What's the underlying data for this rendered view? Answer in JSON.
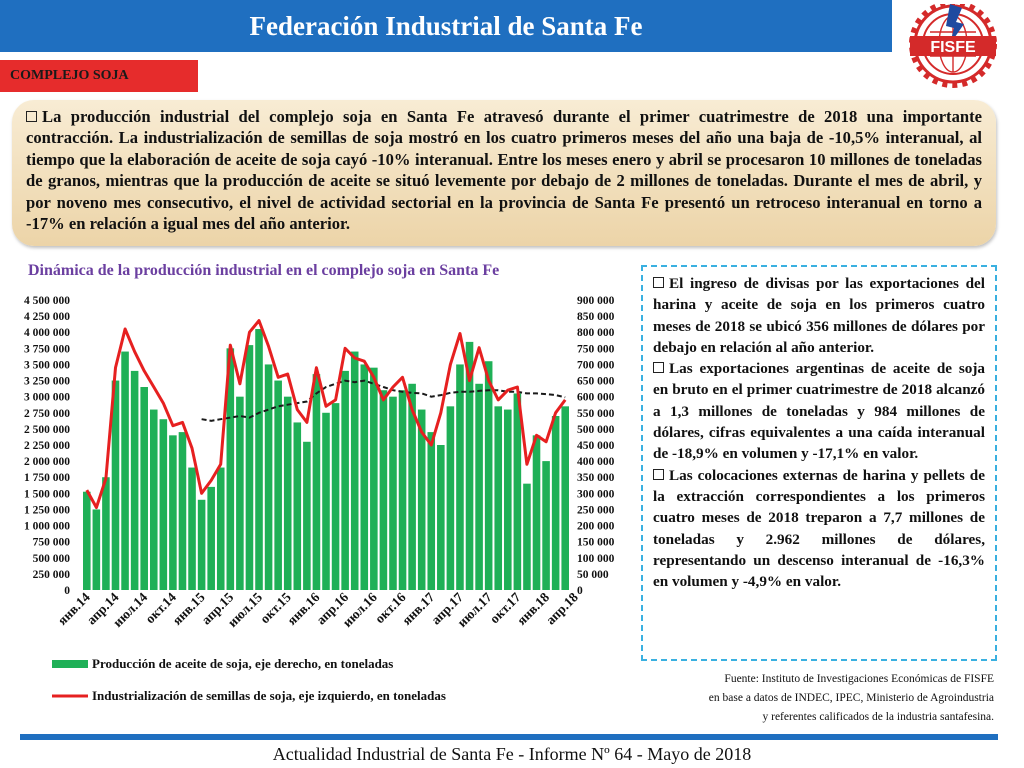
{
  "header": {
    "title": "Federación Industrial de Santa Fe",
    "logo_text": "FISFE",
    "colors": {
      "bar": "#1f6fc0",
      "logo_red": "#d42a2a",
      "logo_blue": "#1f4aa0"
    }
  },
  "section_tag": "COMPLEJO SOJA",
  "summary": {
    "text": "La producción industrial del complejo soja en Santa Fe atravesó durante el primer cuatrimestre de 2018 una importante contracción. La industrialización de semillas de soja mostró en los cuatro primeros meses del año una baja de -10,5% interanual, al tiempo que la elaboración de aceite de soja cayó -10% interanual. Entre los meses enero y abril se procesaron 10 millones de toneladas de granos, mientras que la producción de aceite se situó levemente por debajo de 2 millones de toneladas. Durante el mes de abril, y por noveno mes consecutivo, el nivel de actividad sectorial en la provincia de Santa Fe presentó un retroceso interanual en torno a -17% en relación a igual mes del año anterior."
  },
  "side_box": {
    "paragraphs": [
      "El ingreso de divisas por las exportaciones del harina y aceite de soja en los primeros cuatro meses de 2018 se ubicó 356 millones de dólares por debajo en relación al año anterior.",
      "Las exportaciones argentinas de aceite de soja en bruto en el primer cuatrimestre de 2018 alcanzó a 1,3 millones de toneladas y 984 millones de dólares, cifras equivalentes a una caída interanual de -18,9% en volumen y -17,1% en valor.",
      "Las colocaciones externas de harina y pellets de la extracción correspondientes a los primeros cuatro meses de 2018 treparon a 7,7 millones de toneladas y 2.962 millones de dólares, representando un descenso interanual de -16,3% en volumen y -4,9% en valor."
    ]
  },
  "source": {
    "lines": [
      "Fuente: Instituto de Investigaciones Económicas de FISFE",
      "en base a datos de INDEC, IPEC, Ministerio de Agroindustria",
      "y referentes calificados de la industria santafesina."
    ]
  },
  "footer": "Actualidad Industrial de Santa Fe - Informe Nº 64 - Mayo de 2018",
  "chart_data": {
    "type": "bar",
    "title": "Dinámica de la producción industrial en el complejo soja en Santa Fe",
    "left_axis": {
      "ylim": [
        0,
        4500000
      ],
      "ticks": [
        "0",
        "250 000",
        "500 000",
        "750 000",
        "1 000 000",
        "1 250 000",
        "1 500 000",
        "1 750 000",
        "2 000 000",
        "2 250 000",
        "2 500 000",
        "2 750 000",
        "3 000 000",
        "3 250 000",
        "3 500 000",
        "3 750 000",
        "4 000 000",
        "4 250 000",
        "4 500 000"
      ]
    },
    "right_axis": {
      "ylim": [
        0,
        900000
      ],
      "ticks": [
        "0",
        "50 000",
        "100 000",
        "150 000",
        "200 000",
        "250 000",
        "300 000",
        "350 000",
        "400 000",
        "450 000",
        "500 000",
        "550 000",
        "600 000",
        "650 000",
        "700 000",
        "750 000",
        "800 000",
        "850 000",
        "900 000"
      ]
    },
    "x_tick_labels": [
      "янв.14",
      "апр.14",
      "июл.14",
      "окт.14",
      "янв.15",
      "апр.15",
      "июл.15",
      "окт.15",
      "янв.16",
      "апр.16",
      "июл.16",
      "окт.16",
      "янв.17",
      "апр.17",
      "июл.17",
      "окт.17",
      "янв.18",
      "апр.18"
    ],
    "series": [
      {
        "name": "Producción de aceite de soja, eje derecho, en toneladas",
        "type": "bar",
        "axis": "right",
        "color": "#1fb057",
        "values": [
          305000,
          250000,
          350000,
          650000,
          740000,
          680000,
          630000,
          560000,
          530000,
          480000,
          490000,
          380000,
          280000,
          320000,
          380000,
          750000,
          600000,
          760000,
          810000,
          700000,
          650000,
          600000,
          520000,
          460000,
          670000,
          550000,
          580000,
          680000,
          740000,
          700000,
          690000,
          620000,
          600000,
          620000,
          640000,
          560000,
          490000,
          450000,
          570000,
          700000,
          770000,
          640000,
          710000,
          570000,
          560000,
          610000,
          330000,
          480000,
          400000,
          540000,
          570000
        ]
      },
      {
        "name": "Industrialización de semillas de soja, eje izquierdo, en toneladas",
        "type": "line",
        "axis": "left",
        "color": "#e62020",
        "values": [
          1550000,
          1280000,
          1730000,
          3450000,
          4050000,
          3700000,
          3400000,
          3150000,
          2900000,
          2550000,
          2600000,
          2200000,
          1500000,
          1700000,
          1950000,
          3800000,
          3200000,
          4000000,
          4180000,
          3780000,
          3300000,
          3350000,
          2800000,
          2600000,
          3450000,
          2850000,
          2950000,
          3750000,
          3600000,
          3550000,
          3300000,
          2950000,
          3150000,
          3300000,
          2800000,
          2450000,
          2250000,
          2750000,
          3500000,
          3980000,
          3250000,
          3760000,
          3250000,
          2950000,
          3100000,
          3150000,
          1950000,
          2400000,
          2300000,
          2750000,
          2950000
        ]
      },
      {
        "type": "line",
        "axis": "right",
        "color": "#1a1a1a",
        "dashed": true,
        "start_index": 12,
        "values": [
          530000,
          525000,
          530000,
          535000,
          540000,
          535000,
          550000,
          560000,
          570000,
          575000,
          580000,
          585000,
          610000,
          630000,
          640000,
          650000,
          645000,
          650000,
          640000,
          630000,
          620000,
          615000,
          612000,
          610000,
          600000,
          605000,
          612000,
          615000,
          615000,
          618000,
          620000,
          620000,
          615000,
          615000,
          610000,
          610000,
          608000,
          605000,
          598000
        ]
      }
    ],
    "legend_placement": "bottom",
    "grid": false
  }
}
